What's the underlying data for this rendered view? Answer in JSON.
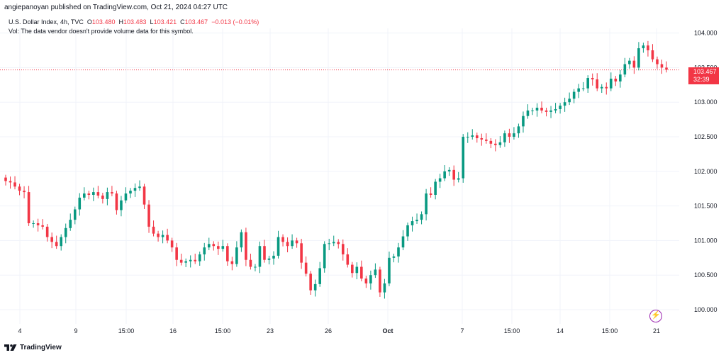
{
  "header": {
    "published": "angiepanoyan published on TradingView.com, Oct 21, 2024 04:27 UTC"
  },
  "legend": {
    "symbol": "U.S. Dollar Index, 4h, TVC",
    "open_label": "O",
    "open": "103.480",
    "high_label": "H",
    "high": "103.483",
    "low_label": "L",
    "low": "103.421",
    "close_label": "C",
    "close": "103.467",
    "change": "−0.013 (−0.01%)",
    "volume_note": "Vol: The data vendor doesn't provide volume data for this symbol."
  },
  "price_tag": {
    "price": "103.467",
    "countdown": "32:39"
  },
  "footer": {
    "brand": "TradingView",
    "logo_icon": "tradingview-logo-icon"
  },
  "colors": {
    "up": "#089981",
    "down": "#f23645",
    "grid": "#f0f3fa",
    "price_line": "#f23645",
    "text": "#131722"
  },
  "chart_data": {
    "type": "candlestick",
    "title": "U.S. Dollar Index, 4h, TVC",
    "y_axis": {
      "ticks": [
        "104.000",
        "103.500",
        "103.000",
        "102.500",
        "102.000",
        "101.500",
        "101.000",
        "100.500",
        "100.000"
      ],
      "range": [
        99.95,
        104.2
      ]
    },
    "x_axis": {
      "ticks": [
        "4",
        "9",
        "15:00",
        "16",
        "15:00",
        "23",
        "26",
        "Oct",
        "7",
        "15:00",
        "14",
        "15:00",
        "21"
      ]
    },
    "last_price": 103.467,
    "closes": [
      101.86,
      101.84,
      101.78,
      101.72,
      101.7,
      101.25,
      101.25,
      101.22,
      101.2,
      101.05,
      100.98,
      100.92,
      101.05,
      101.18,
      101.3,
      101.45,
      101.62,
      101.68,
      101.66,
      101.7,
      101.65,
      101.6,
      101.7,
      101.68,
      101.44,
      101.58,
      101.68,
      101.72,
      101.76,
      101.78,
      101.52,
      101.2,
      101.1,
      101.05,
      101.08,
      101.0,
      100.9,
      100.72,
      100.68,
      100.7,
      100.72,
      100.7,
      100.8,
      100.9,
      100.95,
      100.92,
      100.88,
      100.92,
      100.7,
      100.66,
      100.9,
      101.12,
      100.72,
      100.62,
      100.62,
      100.92,
      100.72,
      100.74,
      100.78,
      101.05,
      100.98,
      100.92,
      101.0,
      100.96,
      100.68,
      100.52,
      100.28,
      100.37,
      100.6,
      100.95,
      100.96,
      100.98,
      100.95,
      100.8,
      100.65,
      100.53,
      100.62,
      100.45,
      100.38,
      100.5,
      100.58,
      100.25,
      100.38,
      100.75,
      100.77,
      100.9,
      101.06,
      101.22,
      101.28,
      101.3,
      101.38,
      101.68,
      101.66,
      101.85,
      101.9,
      102.0,
      102.02,
      101.88,
      101.9,
      102.5,
      102.5,
      102.52,
      102.48,
      102.46,
      102.44,
      102.4,
      102.38,
      102.42,
      102.55,
      102.5,
      102.55,
      102.65,
      102.8,
      102.88,
      102.88,
      102.92,
      102.88,
      102.86,
      102.88,
      102.9,
      102.95,
      103.0,
      103.05,
      103.15,
      103.2,
      103.2,
      103.35,
      103.33,
      103.2,
      103.22,
      103.2,
      103.34,
      103.3,
      103.4,
      103.55,
      103.6,
      103.5,
      103.78,
      103.82,
      103.75,
      103.62,
      103.55,
      103.5,
      103.47
    ]
  }
}
